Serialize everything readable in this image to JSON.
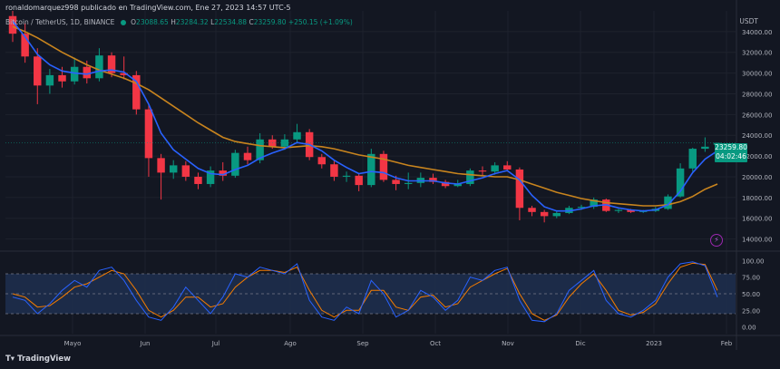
{
  "header": {
    "publisher": "ronaldomarquez998 publicado en TradingView.com, Ene 27, 2023 14:57 UTC-5"
  },
  "legend": {
    "symbol": "Bitcoin / TetherUS, 1D, BINANCE",
    "open_label": "O",
    "open": "23088.65",
    "high_label": "H",
    "high": "23284.32",
    "low_label": "L",
    "low": "22534.88",
    "close_label": "C",
    "close": "23259.80",
    "change": "+250.15 (+1.09%)"
  },
  "currency": "USDT",
  "last_price": {
    "price": "23259.80",
    "countdown": "04:02:46"
  },
  "footer": {
    "brand": "TradingView",
    "icon": "tradingview-logo-icon"
  },
  "colors": {
    "up": "#089981",
    "down": "#f23645",
    "fast_ma": "#2962ff",
    "slow_ma": "#c8841e",
    "stoch_k": "#2962ff",
    "stoch_d": "#f57c00",
    "band": "#1e2f4f"
  },
  "chart_data": {
    "type": "candlestick",
    "x": [
      "2023-04-20",
      "2023-04-25",
      "2023-04-30",
      "2023-05-05",
      "2023-05-10",
      "2023-05-15",
      "2023-05-20",
      "2023-05-25",
      "2023-05-30",
      "2023-06-04",
      "2023-06-09",
      "2023-06-14",
      "2023-06-19",
      "2023-06-24",
      "2023-06-29",
      "2023-07-04",
      "2023-07-09",
      "2023-07-14",
      "2023-07-19",
      "2023-07-24",
      "2023-07-29",
      "2023-08-03",
      "2023-08-08",
      "2023-08-13",
      "2023-08-18",
      "2023-08-23",
      "2023-08-28",
      "2023-09-02",
      "2023-09-07",
      "2023-09-12",
      "2023-09-17",
      "2023-09-22",
      "2023-09-27",
      "2023-10-02",
      "2023-10-07",
      "2023-10-12",
      "2023-10-17",
      "2023-10-22",
      "2023-10-27",
      "2023-11-01",
      "2023-11-06",
      "2023-11-11",
      "2023-11-16",
      "2023-11-21",
      "2023-11-26",
      "2023-12-01",
      "2023-12-06",
      "2023-12-11",
      "2023-12-16",
      "2023-12-21",
      "2023-12-26",
      "2023-12-31",
      "2023-01-05",
      "2023-01-10",
      "2023-01-15",
      "2023-01-20",
      "2023-01-25",
      "2023-01-27"
    ],
    "x_ticks": [
      "Mayo",
      "Jun",
      "Jul",
      "Ago",
      "Sep",
      "Oct",
      "Nov",
      "Dic",
      "2023",
      "Feb"
    ],
    "price_ticks": [
      "34000.00",
      "32000.00",
      "30000.00",
      "28000.00",
      "26000.00",
      "24000.00",
      "22000.00",
      "20000.00",
      "18000.00",
      "16000.00",
      "14000.00"
    ],
    "price_range": [
      13000,
      36000
    ],
    "candles": [
      {
        "o": 35500,
        "h": 36000,
        "l": 33000,
        "c": 33800
      },
      {
        "o": 33800,
        "h": 34800,
        "l": 31000,
        "c": 31600
      },
      {
        "o": 31600,
        "h": 32400,
        "l": 27000,
        "c": 28800
      },
      {
        "o": 28800,
        "h": 30400,
        "l": 28000,
        "c": 29800
      },
      {
        "o": 29800,
        "h": 30600,
        "l": 28600,
        "c": 29200
      },
      {
        "o": 29200,
        "h": 31500,
        "l": 28900,
        "c": 30600
      },
      {
        "o": 30600,
        "h": 31200,
        "l": 29000,
        "c": 29500
      },
      {
        "o": 29500,
        "h": 32400,
        "l": 29200,
        "c": 31700
      },
      {
        "o": 31700,
        "h": 32000,
        "l": 29600,
        "c": 30000
      },
      {
        "o": 30000,
        "h": 31600,
        "l": 29400,
        "c": 29800
      },
      {
        "o": 29800,
        "h": 30200,
        "l": 26000,
        "c": 26500
      },
      {
        "o": 26500,
        "h": 26900,
        "l": 20000,
        "c": 21800
      },
      {
        "o": 21800,
        "h": 22200,
        "l": 17800,
        "c": 20400
      },
      {
        "o": 20400,
        "h": 21600,
        "l": 19800,
        "c": 21100
      },
      {
        "o": 21100,
        "h": 21500,
        "l": 19600,
        "c": 20000
      },
      {
        "o": 20000,
        "h": 20400,
        "l": 18800,
        "c": 19300
      },
      {
        "o": 19300,
        "h": 21000,
        "l": 19000,
        "c": 20600
      },
      {
        "o": 20600,
        "h": 21400,
        "l": 19600,
        "c": 20100
      },
      {
        "o": 20100,
        "h": 22600,
        "l": 19900,
        "c": 22300
      },
      {
        "o": 22300,
        "h": 22900,
        "l": 21200,
        "c": 21600
      },
      {
        "o": 21600,
        "h": 24200,
        "l": 21300,
        "c": 23600
      },
      {
        "o": 23600,
        "h": 24000,
        "l": 22700,
        "c": 22900
      },
      {
        "o": 22900,
        "h": 24100,
        "l": 22600,
        "c": 23600
      },
      {
        "o": 23600,
        "h": 25100,
        "l": 23200,
        "c": 24300
      },
      {
        "o": 24300,
        "h": 24600,
        "l": 21600,
        "c": 21900
      },
      {
        "o": 21900,
        "h": 22200,
        "l": 20800,
        "c": 21200
      },
      {
        "o": 21200,
        "h": 21600,
        "l": 19600,
        "c": 20000
      },
      {
        "o": 20000,
        "h": 20500,
        "l": 19500,
        "c": 20100
      },
      {
        "o": 20100,
        "h": 20300,
        "l": 18600,
        "c": 19200
      },
      {
        "o": 19200,
        "h": 22700,
        "l": 19000,
        "c": 22200
      },
      {
        "o": 22200,
        "h": 22500,
        "l": 19500,
        "c": 19700
      },
      {
        "o": 19700,
        "h": 20100,
        "l": 18700,
        "c": 19300
      },
      {
        "o": 19300,
        "h": 20400,
        "l": 18800,
        "c": 19400
      },
      {
        "o": 19400,
        "h": 20400,
        "l": 19000,
        "c": 19900
      },
      {
        "o": 19900,
        "h": 20300,
        "l": 19300,
        "c": 19500
      },
      {
        "o": 19500,
        "h": 19700,
        "l": 18900,
        "c": 19100
      },
      {
        "o": 19100,
        "h": 19700,
        "l": 19000,
        "c": 19300
      },
      {
        "o": 19300,
        "h": 20800,
        "l": 19100,
        "c": 20600
      },
      {
        "o": 20600,
        "h": 21000,
        "l": 20100,
        "c": 20500
      },
      {
        "o": 20500,
        "h": 21400,
        "l": 20200,
        "c": 21100
      },
      {
        "o": 21100,
        "h": 21500,
        "l": 20500,
        "c": 20700
      },
      {
        "o": 20700,
        "h": 20900,
        "l": 15800,
        "c": 17000
      },
      {
        "o": 17000,
        "h": 17200,
        "l": 16200,
        "c": 16600
      },
      {
        "o": 16600,
        "h": 16800,
        "l": 15600,
        "c": 16200
      },
      {
        "o": 16200,
        "h": 16700,
        "l": 16000,
        "c": 16500
      },
      {
        "o": 16500,
        "h": 17200,
        "l": 16400,
        "c": 17000
      },
      {
        "o": 17000,
        "h": 17300,
        "l": 16800,
        "c": 17100
      },
      {
        "o": 17100,
        "h": 18000,
        "l": 16900,
        "c": 17800
      },
      {
        "o": 17800,
        "h": 17900,
        "l": 16600,
        "c": 16700
      },
      {
        "o": 16700,
        "h": 16900,
        "l": 16500,
        "c": 16800
      },
      {
        "o": 16800,
        "h": 16900,
        "l": 16500,
        "c": 16600
      },
      {
        "o": 16600,
        "h": 16800,
        "l": 16500,
        "c": 16700
      },
      {
        "o": 16700,
        "h": 17100,
        "l": 16600,
        "c": 16900
      },
      {
        "o": 16900,
        "h": 18300,
        "l": 16800,
        "c": 18100
      },
      {
        "o": 18100,
        "h": 21300,
        "l": 18000,
        "c": 20800
      },
      {
        "o": 20800,
        "h": 22800,
        "l": 20500,
        "c": 22700
      },
      {
        "o": 22700,
        "h": 23800,
        "l": 22400,
        "c": 22900
      },
      {
        "o": 23088.65,
        "h": 23284.32,
        "l": 22534.88,
        "c": 23259.8
      }
    ],
    "fast_ma": [
      35000,
      33500,
      31800,
      30800,
      30200,
      30000,
      29900,
      30200,
      30300,
      30100,
      29200,
      27000,
      24200,
      22600,
      21700,
      20800,
      20300,
      20200,
      20700,
      21100,
      21800,
      22300,
      22700,
      23300,
      23100,
      22500,
      21600,
      20900,
      20300,
      20500,
      20400,
      19900,
      19600,
      19600,
      19600,
      19400,
      19300,
      19600,
      19900,
      20300,
      20600,
      19700,
      18200,
      17100,
      16700,
      16700,
      16900,
      17200,
      17300,
      17000,
      16800,
      16700,
      16800,
      17300,
      18600,
      20400,
      21700,
      22500
    ],
    "slow_ma": [
      34500,
      34000,
      33400,
      32700,
      32000,
      31400,
      30800,
      30300,
      29900,
      29500,
      29000,
      28400,
      27600,
      26800,
      26000,
      25200,
      24500,
      23800,
      23400,
      23200,
      23000,
      22900,
      22800,
      22900,
      23000,
      22900,
      22700,
      22400,
      22100,
      21900,
      21700,
      21400,
      21100,
      20900,
      20700,
      20500,
      20300,
      20200,
      20100,
      20000,
      20000,
      19700,
      19300,
      18900,
      18500,
      18200,
      17900,
      17700,
      17500,
      17400,
      17300,
      17200,
      17200,
      17300,
      17600,
      18100,
      18800,
      19300
    ],
    "stoch_ticks": [
      "100.00",
      "75.00",
      "50.00",
      "25.00",
      "0.00"
    ],
    "stoch_range": [
      -10,
      110
    ],
    "stoch_bands": [
      20,
      50,
      80
    ],
    "stoch_k": [
      45,
      40,
      20,
      35,
      55,
      70,
      60,
      85,
      90,
      70,
      40,
      15,
      10,
      30,
      60,
      40,
      20,
      45,
      80,
      75,
      90,
      85,
      80,
      95,
      40,
      15,
      10,
      30,
      20,
      70,
      50,
      15,
      25,
      55,
      45,
      25,
      40,
      75,
      70,
      85,
      90,
      40,
      10,
      8,
      20,
      55,
      70,
      85,
      40,
      20,
      15,
      25,
      40,
      75,
      95,
      98,
      92,
      45
    ],
    "stoch_d": [
      50,
      45,
      30,
      32,
      45,
      60,
      65,
      75,
      85,
      80,
      55,
      25,
      15,
      25,
      45,
      45,
      30,
      35,
      60,
      75,
      85,
      85,
      82,
      90,
      55,
      25,
      15,
      25,
      25,
      55,
      55,
      30,
      25,
      45,
      48,
      30,
      35,
      60,
      70,
      80,
      88,
      50,
      20,
      10,
      18,
      45,
      65,
      80,
      55,
      25,
      18,
      22,
      35,
      65,
      90,
      96,
      94,
      55
    ]
  }
}
